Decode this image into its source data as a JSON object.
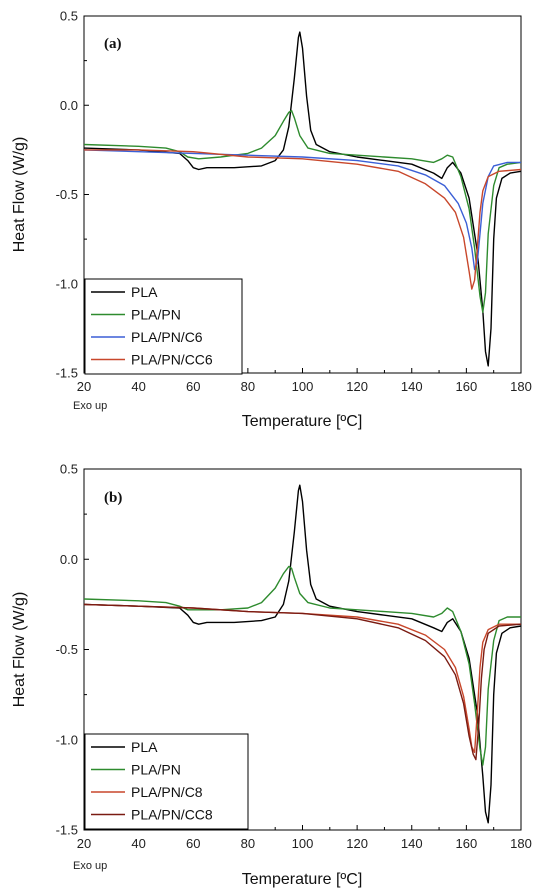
{
  "chart_data": [
    {
      "type": "line",
      "panel_label": "(a)",
      "xlabel": "Temperature [ºC]",
      "ylabel": "Heat Flow (W/g)",
      "note": "Exo up",
      "xlim": [
        20,
        180
      ],
      "ylim": [
        -1.5,
        0.5
      ],
      "xticks": [
        "20",
        "40",
        "60",
        "80",
        "100",
        "120",
        "140",
        "160",
        "180"
      ],
      "yticks": [
        "0.5",
        "0.0",
        "-0.5",
        "-1.0",
        "-1.5"
      ],
      "legend_position": "bottom-left",
      "series": [
        {
          "name": "PLA",
          "color": "#000000",
          "points": [
            [
              20,
              -0.24
            ],
            [
              40,
              -0.25
            ],
            [
              55,
              -0.27
            ],
            [
              58,
              -0.31
            ],
            [
              60,
              -0.35
            ],
            [
              62,
              -0.36
            ],
            [
              65,
              -0.35
            ],
            [
              75,
              -0.35
            ],
            [
              85,
              -0.34
            ],
            [
              90,
              -0.31
            ],
            [
              93,
              -0.25
            ],
            [
              95,
              -0.12
            ],
            [
              97,
              0.15
            ],
            [
              98.5,
              0.38
            ],
            [
              99,
              0.41
            ],
            [
              100,
              0.32
            ],
            [
              101.5,
              0.05
            ],
            [
              103,
              -0.14
            ],
            [
              105,
              -0.22
            ],
            [
              110,
              -0.26
            ],
            [
              120,
              -0.29
            ],
            [
              130,
              -0.31
            ],
            [
              140,
              -0.33
            ],
            [
              148,
              -0.38
            ],
            [
              151,
              -0.41
            ],
            [
              153,
              -0.35
            ],
            [
              155,
              -0.32
            ],
            [
              158,
              -0.38
            ],
            [
              161,
              -0.52
            ],
            [
              164,
              -0.82
            ],
            [
              166,
              -1.15
            ],
            [
              167,
              -1.38
            ],
            [
              168,
              -1.46
            ],
            [
              169,
              -1.25
            ],
            [
              170,
              -0.75
            ],
            [
              171,
              -0.52
            ],
            [
              173,
              -0.41
            ],
            [
              176,
              -0.38
            ],
            [
              180,
              -0.37
            ]
          ]
        },
        {
          "name": "PLA/PN",
          "color": "#2e8b2e",
          "points": [
            [
              20,
              -0.22
            ],
            [
              40,
              -0.23
            ],
            [
              50,
              -0.24
            ],
            [
              55,
              -0.26
            ],
            [
              58,
              -0.29
            ],
            [
              62,
              -0.3
            ],
            [
              70,
              -0.29
            ],
            [
              80,
              -0.27
            ],
            [
              85,
              -0.24
            ],
            [
              90,
              -0.17
            ],
            [
              93,
              -0.09
            ],
            [
              95,
              -0.04
            ],
            [
              96,
              -0.03
            ],
            [
              97,
              -0.07
            ],
            [
              99,
              -0.17
            ],
            [
              102,
              -0.24
            ],
            [
              110,
              -0.27
            ],
            [
              120,
              -0.28
            ],
            [
              130,
              -0.29
            ],
            [
              140,
              -0.3
            ],
            [
              148,
              -0.32
            ],
            [
              151,
              -0.3
            ],
            [
              153,
              -0.28
            ],
            [
              155,
              -0.29
            ],
            [
              158,
              -0.4
            ],
            [
              161,
              -0.58
            ],
            [
              163,
              -0.8
            ],
            [
              165,
              -1.07
            ],
            [
              166,
              -1.16
            ],
            [
              167,
              -1.05
            ],
            [
              168,
              -0.72
            ],
            [
              170,
              -0.45
            ],
            [
              172,
              -0.35
            ],
            [
              175,
              -0.33
            ],
            [
              180,
              -0.32
            ]
          ]
        },
        {
          "name": "PLA/PN/C6",
          "color": "#3b5fd6",
          "points": [
            [
              20,
              -0.25
            ],
            [
              40,
              -0.26
            ],
            [
              60,
              -0.27
            ],
            [
              80,
              -0.28
            ],
            [
              100,
              -0.29
            ],
            [
              120,
              -0.31
            ],
            [
              135,
              -0.34
            ],
            [
              145,
              -0.39
            ],
            [
              152,
              -0.45
            ],
            [
              157,
              -0.55
            ],
            [
              160,
              -0.66
            ],
            [
              162,
              -0.8
            ],
            [
              163,
              -0.92
            ],
            [
              164,
              -0.88
            ],
            [
              165,
              -0.72
            ],
            [
              166,
              -0.55
            ],
            [
              168,
              -0.4
            ],
            [
              170,
              -0.34
            ],
            [
              175,
              -0.32
            ],
            [
              180,
              -0.32
            ]
          ]
        },
        {
          "name": "PLA/PN/CC6",
          "color": "#c8472b",
          "points": [
            [
              20,
              -0.25
            ],
            [
              40,
              -0.25
            ],
            [
              60,
              -0.26
            ],
            [
              80,
              -0.29
            ],
            [
              100,
              -0.3
            ],
            [
              120,
              -0.33
            ],
            [
              135,
              -0.37
            ],
            [
              145,
              -0.44
            ],
            [
              152,
              -0.52
            ],
            [
              156,
              -0.6
            ],
            [
              159,
              -0.74
            ],
            [
              161,
              -0.93
            ],
            [
              162,
              -1.03
            ],
            [
              163,
              -0.98
            ],
            [
              164,
              -0.8
            ],
            [
              165,
              -0.6
            ],
            [
              166,
              -0.48
            ],
            [
              168,
              -0.4
            ],
            [
              172,
              -0.37
            ],
            [
              180,
              -0.36
            ]
          ]
        }
      ]
    },
    {
      "type": "line",
      "panel_label": "(b)",
      "xlabel": "Temperature [ºC]",
      "ylabel": "Heat Flow (W/g)",
      "note": "Exo up",
      "xlim": [
        20,
        180
      ],
      "ylim": [
        -1.5,
        0.5
      ],
      "xticks": [
        "20",
        "40",
        "60",
        "80",
        "100",
        "120",
        "140",
        "160",
        "180"
      ],
      "yticks": [
        "0.5",
        "0.0",
        "-0.5",
        "-1.0",
        "-1.5"
      ],
      "legend_position": "bottom-left",
      "series": [
        {
          "name": "PLA",
          "color": "#000000",
          "points": [
            [
              20,
              -0.25
            ],
            [
              40,
              -0.26
            ],
            [
              55,
              -0.27
            ],
            [
              58,
              -0.31
            ],
            [
              60,
              -0.35
            ],
            [
              62,
              -0.36
            ],
            [
              65,
              -0.35
            ],
            [
              75,
              -0.35
            ],
            [
              85,
              -0.34
            ],
            [
              90,
              -0.32
            ],
            [
              93,
              -0.25
            ],
            [
              95,
              -0.12
            ],
            [
              97,
              0.15
            ],
            [
              98.5,
              0.38
            ],
            [
              99,
              0.41
            ],
            [
              100,
              0.32
            ],
            [
              101.5,
              0.05
            ],
            [
              103,
              -0.14
            ],
            [
              105,
              -0.22
            ],
            [
              110,
              -0.26
            ],
            [
              120,
              -0.29
            ],
            [
              130,
              -0.31
            ],
            [
              140,
              -0.33
            ],
            [
              148,
              -0.38
            ],
            [
              151,
              -0.4
            ],
            [
              153,
              -0.35
            ],
            [
              155,
              -0.33
            ],
            [
              158,
              -0.4
            ],
            [
              161,
              -0.55
            ],
            [
              164,
              -0.85
            ],
            [
              166,
              -1.2
            ],
            [
              167,
              -1.4
            ],
            [
              168,
              -1.46
            ],
            [
              169,
              -1.25
            ],
            [
              170,
              -0.75
            ],
            [
              171,
              -0.52
            ],
            [
              173,
              -0.41
            ],
            [
              176,
              -0.38
            ],
            [
              180,
              -0.37
            ]
          ]
        },
        {
          "name": "PLA/PN",
          "color": "#2e8b2e",
          "points": [
            [
              20,
              -0.22
            ],
            [
              40,
              -0.23
            ],
            [
              50,
              -0.24
            ],
            [
              55,
              -0.26
            ],
            [
              58,
              -0.28
            ],
            [
              62,
              -0.28
            ],
            [
              70,
              -0.28
            ],
            [
              80,
              -0.27
            ],
            [
              85,
              -0.24
            ],
            [
              90,
              -0.16
            ],
            [
              93,
              -0.08
            ],
            [
              95,
              -0.04
            ],
            [
              96,
              -0.05
            ],
            [
              97,
              -0.1
            ],
            [
              99,
              -0.19
            ],
            [
              102,
              -0.24
            ],
            [
              110,
              -0.27
            ],
            [
              120,
              -0.28
            ],
            [
              130,
              -0.29
            ],
            [
              140,
              -0.3
            ],
            [
              148,
              -0.32
            ],
            [
              151,
              -0.3
            ],
            [
              153,
              -0.27
            ],
            [
              155,
              -0.29
            ],
            [
              158,
              -0.4
            ],
            [
              161,
              -0.58
            ],
            [
              163,
              -0.8
            ],
            [
              165,
              -1.05
            ],
            [
              166,
              -1.14
            ],
            [
              167,
              -1.04
            ],
            [
              168,
              -0.72
            ],
            [
              170,
              -0.45
            ],
            [
              172,
              -0.34
            ],
            [
              175,
              -0.32
            ],
            [
              180,
              -0.32
            ]
          ]
        },
        {
          "name": "PLA/PN/C8",
          "color": "#c8472b",
          "points": [
            [
              20,
              -0.25
            ],
            [
              40,
              -0.26
            ],
            [
              60,
              -0.27
            ],
            [
              80,
              -0.29
            ],
            [
              100,
              -0.3
            ],
            [
              120,
              -0.32
            ],
            [
              135,
              -0.36
            ],
            [
              145,
              -0.42
            ],
            [
              152,
              -0.5
            ],
            [
              156,
              -0.6
            ],
            [
              159,
              -0.76
            ],
            [
              161,
              -0.94
            ],
            [
              162,
              -1.04
            ],
            [
              163,
              -1.07
            ],
            [
              164,
              -0.85
            ],
            [
              165,
              -0.6
            ],
            [
              166,
              -0.46
            ],
            [
              168,
              -0.39
            ],
            [
              172,
              -0.36
            ],
            [
              180,
              -0.36
            ]
          ]
        },
        {
          "name": "PLA/PN/CC8",
          "color": "#7a1b12",
          "points": [
            [
              20,
              -0.25
            ],
            [
              40,
              -0.26
            ],
            [
              60,
              -0.27
            ],
            [
              80,
              -0.29
            ],
            [
              100,
              -0.3
            ],
            [
              120,
              -0.33
            ],
            [
              135,
              -0.38
            ],
            [
              145,
              -0.45
            ],
            [
              152,
              -0.54
            ],
            [
              156,
              -0.64
            ],
            [
              159,
              -0.8
            ],
            [
              161,
              -0.98
            ],
            [
              162.5,
              -1.08
            ],
            [
              163.5,
              -1.11
            ],
            [
              164.5,
              -0.92
            ],
            [
              165.5,
              -0.66
            ],
            [
              166.5,
              -0.5
            ],
            [
              168,
              -0.41
            ],
            [
              172,
              -0.37
            ],
            [
              180,
              -0.36
            ]
          ]
        }
      ]
    }
  ]
}
